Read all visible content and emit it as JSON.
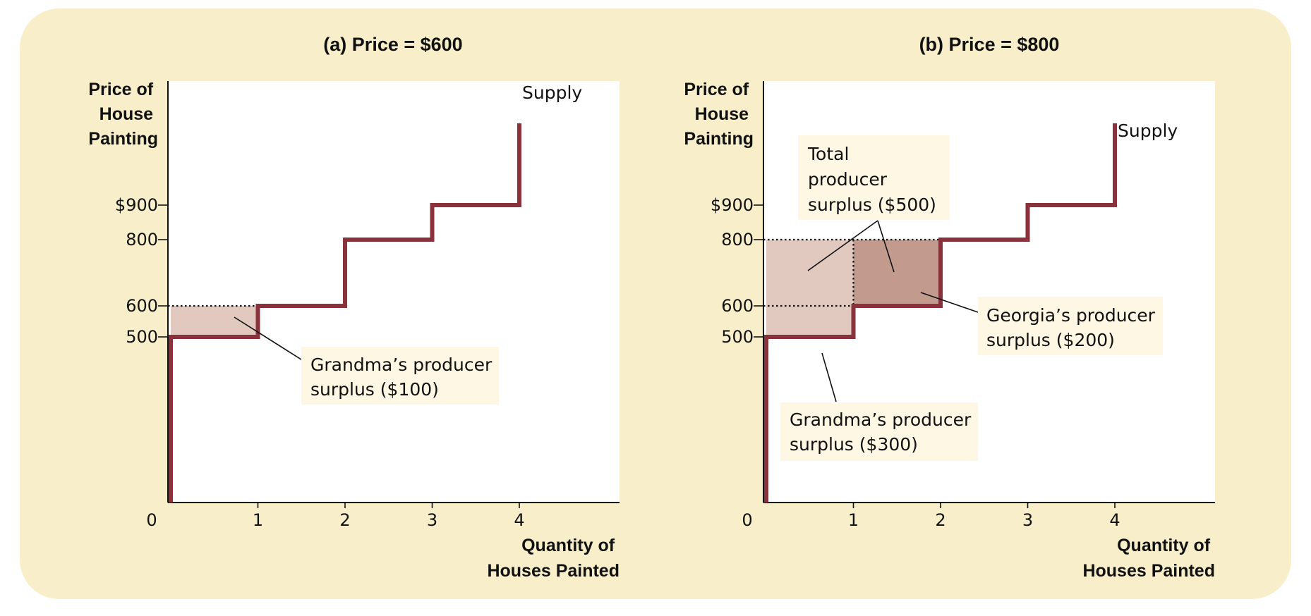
{
  "colors": {
    "background": "#f8efca",
    "plot_area": "#ffffff",
    "supply_line": "#8a323c",
    "surplus_light": "#e2c9c0",
    "surplus_dark": "#c39a8e",
    "label_box": "#fdf7e4"
  },
  "chart_data": [
    {
      "type": "line",
      "title": "(a) Price = $600",
      "ylabel": [
        "Price of",
        "House",
        "Painting"
      ],
      "xlabel": [
        "Quantity of",
        "Houses Painted"
      ],
      "origin_label": "0",
      "x_ticks": [
        "1",
        "2",
        "3",
        "4"
      ],
      "y_ticks": [
        {
          "value": 900,
          "label": "$900"
        },
        {
          "value": 800,
          "label": "800"
        },
        {
          "value": 600,
          "label": "600"
        },
        {
          "value": 500,
          "label": "500"
        }
      ],
      "xlim": [
        0,
        5.2
      ],
      "ylim": [
        0,
        1300
      ],
      "price": 600,
      "series": [
        {
          "name": "Supply",
          "x": [
            0,
            0,
            1,
            1,
            2,
            2,
            3,
            3,
            4,
            4
          ],
          "y": [
            0,
            500,
            500,
            600,
            600,
            800,
            800,
            900,
            900,
            1150
          ]
        }
      ],
      "surplus_regions": [
        {
          "label": "Grandma's producer surplus ($100)",
          "x": [
            0,
            1
          ],
          "y": [
            500,
            600
          ],
          "shade": "light"
        }
      ],
      "annotations": [
        {
          "text": [
            "Grandma’s producer",
            "surplus ($100)"
          ],
          "points_to": {
            "x": 0.75,
            "y": 560
          }
        }
      ]
    },
    {
      "type": "line",
      "title": "(b) Price = $800",
      "ylabel": [
        "Price of",
        "House",
        "Painting"
      ],
      "xlabel": [
        "Quantity of",
        "Houses Painted"
      ],
      "origin_label": "0",
      "x_ticks": [
        "1",
        "2",
        "3",
        "4"
      ],
      "y_ticks": [
        {
          "value": 900,
          "label": "$900"
        },
        {
          "value": 800,
          "label": "800"
        },
        {
          "value": 600,
          "label": "600"
        },
        {
          "value": 500,
          "label": "500"
        }
      ],
      "xlim": [
        0,
        5.2
      ],
      "ylim": [
        0,
        1300
      ],
      "price": 800,
      "series": [
        {
          "name": "Supply",
          "x": [
            0,
            0,
            1,
            1,
            2,
            2,
            3,
            3,
            4,
            4
          ],
          "y": [
            0,
            500,
            500,
            600,
            600,
            800,
            800,
            900,
            900,
            1150
          ]
        }
      ],
      "surplus_regions": [
        {
          "label": "Grandma's producer surplus ($300)",
          "x": [
            0,
            1
          ],
          "y": [
            500,
            800
          ],
          "shade": "light"
        },
        {
          "label": "Georgia's producer surplus ($200)",
          "x": [
            1,
            2
          ],
          "y": [
            600,
            800
          ],
          "shade": "dark"
        }
      ],
      "annotations": [
        {
          "text": [
            "Total",
            "producer",
            "surplus ($500)"
          ]
        },
        {
          "text": [
            "Georgia’s producer",
            "surplus ($200)"
          ]
        },
        {
          "text": [
            "Grandma’s producer",
            "surplus ($300)"
          ]
        }
      ]
    }
  ]
}
